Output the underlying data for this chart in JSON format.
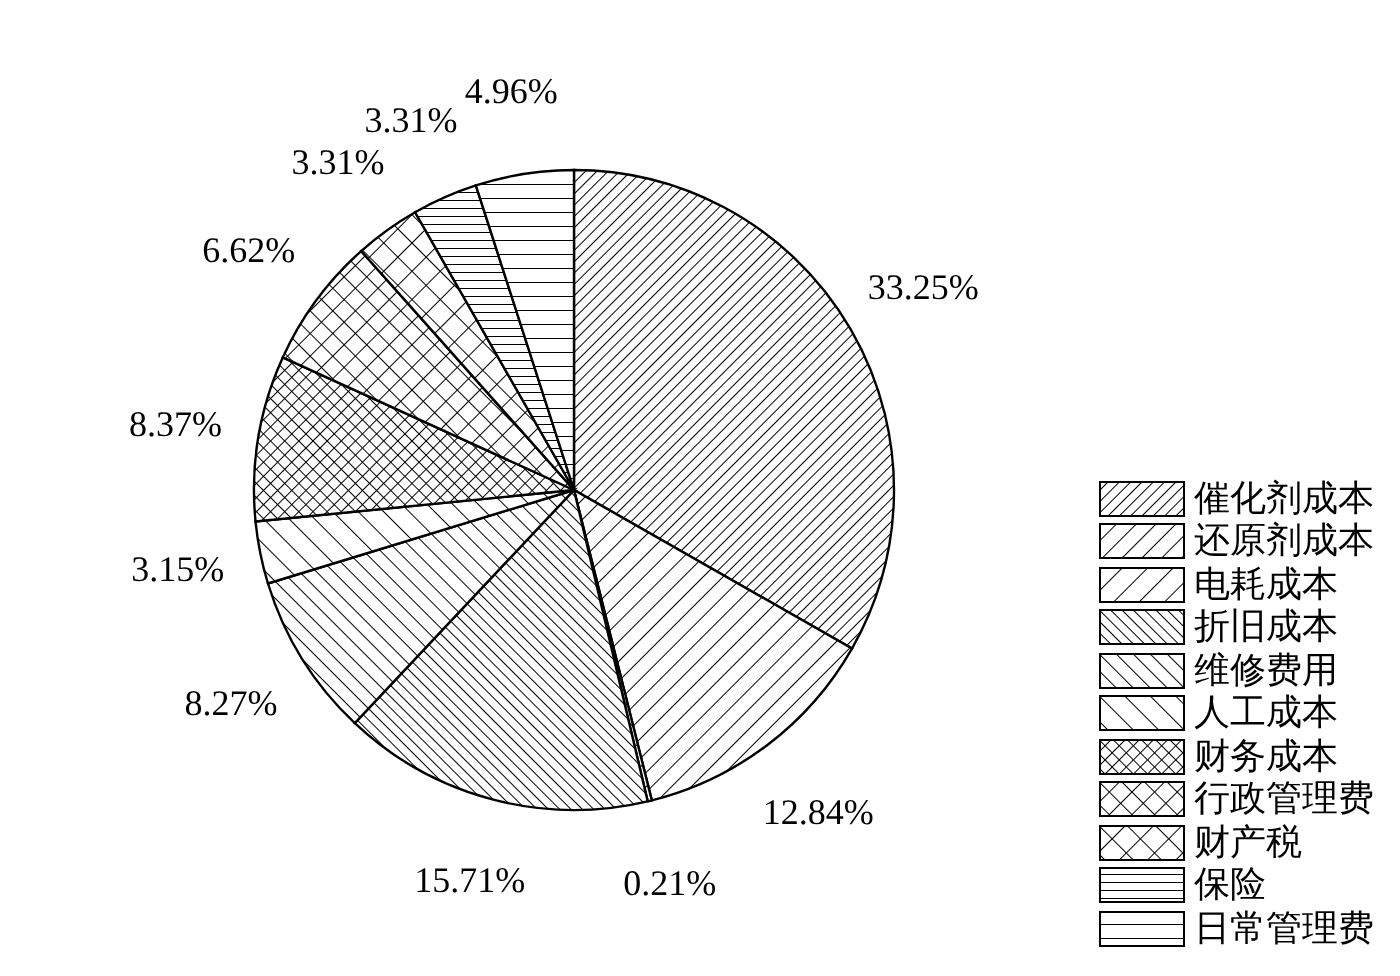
{
  "chart_data": {
    "type": "pie",
    "categories": [
      "催化剂成本",
      "还原剂成本",
      "电耗成本",
      "折旧成本",
      "维修费用",
      "人工成本",
      "财务成本",
      "行政管理费",
      "财产税",
      "保险",
      "日常管理费"
    ],
    "values": [
      33.25,
      12.84,
      0.21,
      15.71,
      8.27,
      3.15,
      8.37,
      6.62,
      3.31,
      3.31,
      4.96
    ],
    "value_labels": [
      "33.25%",
      "12.84%",
      "0.21%",
      "15.71%",
      "8.27%",
      "3.15%",
      "8.37%",
      "6.62%",
      "3.31%",
      "3.31%",
      "4.96%"
    ],
    "colors": [
      "#000000",
      "#000000",
      "#000000",
      "#000000",
      "#000000",
      "#000000",
      "#000000",
      "#000000",
      "#000000",
      "#000000",
      "#000000"
    ],
    "legend": "bottom right"
  }
}
